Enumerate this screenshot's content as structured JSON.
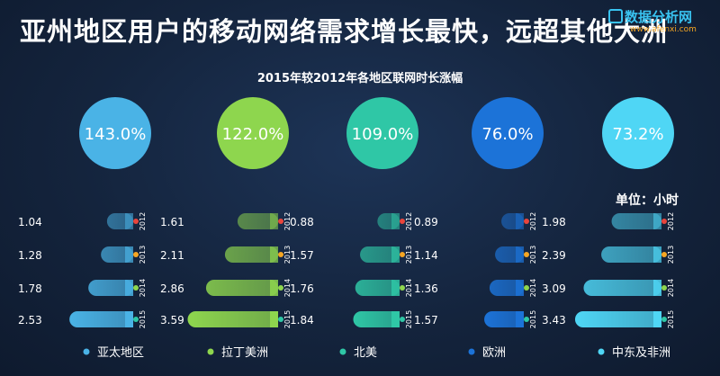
{
  "title": "亚州地区用户的移动网络需求增长最快，远超其他大洲",
  "watermark": {
    "brand": "数据分析网",
    "url": "www.afenxi.com"
  },
  "unit": "单位：小时",
  "chart_data": {
    "type": "bar",
    "subtitle": "2015年较2012年各地区联网时长涨幅",
    "years": [
      "2012",
      "2013",
      "2014",
      "2015"
    ],
    "series": [
      {
        "name": "亚太地区",
        "growth": "143.0%",
        "color": "#4ab3e6",
        "values": [
          1.04,
          1.28,
          1.78,
          2.53
        ]
      },
      {
        "name": "拉丁美洲",
        "growth": "122.0%",
        "color": "#8ed64e",
        "values": [
          1.61,
          2.11,
          2.86,
          3.59
        ]
      },
      {
        "name": "北美",
        "growth": "109.0%",
        "color": "#2fc7a6",
        "values": [
          0.88,
          1.57,
          1.76,
          1.84
        ]
      },
      {
        "name": "欧洲",
        "growth": "76.0%",
        "color": "#1c73d8",
        "values": [
          0.89,
          1.14,
          1.36,
          1.57
        ]
      },
      {
        "name": "中东及非洲",
        "growth": "73.2%",
        "color": "#4fd6f5",
        "values": [
          1.98,
          2.39,
          3.09,
          3.43
        ]
      }
    ],
    "year_dot_colors": {
      "2012": "#e8453c",
      "2013": "#f5a623",
      "2014": "#8ed64e",
      "2015": "#2fc7a6"
    },
    "value_max": 3.6,
    "legend_position": "bottom"
  }
}
